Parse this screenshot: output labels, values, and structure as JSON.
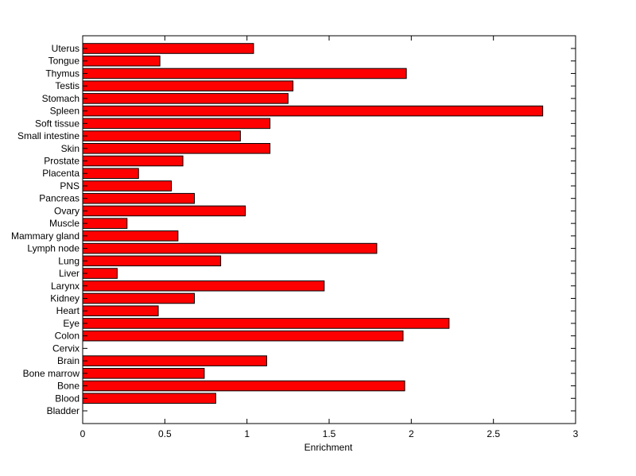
{
  "chart_data": {
    "type": "bar",
    "orientation": "horizontal",
    "title": "",
    "xlabel": "Enrichment",
    "ylabel": "",
    "xlim": [
      0,
      3
    ],
    "xticks": [
      0,
      0.5,
      1,
      1.5,
      2,
      2.5,
      3
    ],
    "xtick_labels": [
      "0",
      "0.5",
      "1",
      "1.5",
      "2",
      "2.5",
      "3"
    ],
    "grid": false,
    "bar_color": "#ff0000",
    "bar_edge_color": "#000000",
    "categories": [
      "Bladder",
      "Blood",
      "Bone",
      "Bone marrow",
      "Brain",
      "Cervix",
      "Colon",
      "Eye",
      "Heart",
      "Kidney",
      "Larynx",
      "Liver",
      "Lung",
      "Lymph node",
      "Mammary gland",
      "Muscle",
      "Ovary",
      "Pancreas",
      "PNS",
      "Placenta",
      "Prostate",
      "Skin",
      "Small intestine",
      "Soft tissue",
      "Spleen",
      "Stomach",
      "Testis",
      "Thymus",
      "Tongue",
      "Uterus"
    ],
    "values": [
      0,
      0.81,
      1.96,
      0.74,
      1.12,
      0,
      1.95,
      2.23,
      0.46,
      0.68,
      1.47,
      0.21,
      0.84,
      1.79,
      0.58,
      0.27,
      0.99,
      0.68,
      0.54,
      0.34,
      0.61,
      1.14,
      0.96,
      1.14,
      2.8,
      1.25,
      1.28,
      1.97,
      0.47,
      1.04
    ]
  }
}
